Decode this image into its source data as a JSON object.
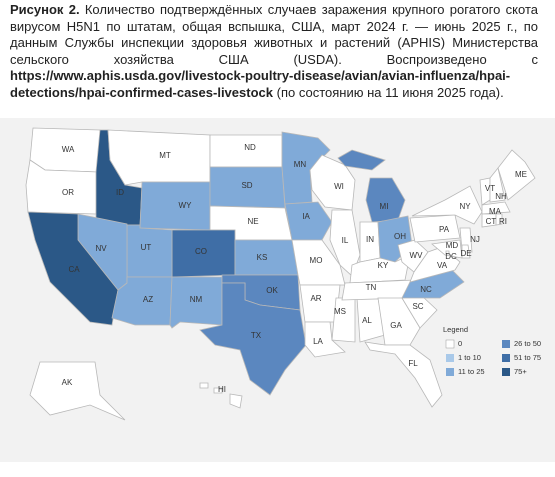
{
  "caption": {
    "label": "Рисунок 2.",
    "text": "Количество подтверждённых случаев заражения крупного рогатого скота вирусом H5N1 по штатам, общая вспышка, США, март 2024 г. — июнь 2025 г., по данным Службы инспекции здоровья животных и растений (APHIS) Министерства сельского хозяйства США (USDA). Воспроизведено с",
    "link": "https://www.aphis.usda.gov/livestock-poultry-disease/avian/avian-influenza/hpai-detections/hpai-confirmed-cases-livestock",
    "suffix": "(по состоянию на 11 июня 2025 года)."
  },
  "legend": {
    "title": "Legend",
    "classes": [
      {
        "label": "0",
        "color": "#ffffff"
      },
      {
        "label": "1 to 10",
        "color": "#a9c9e9"
      },
      {
        "label": "11 to 25",
        "color": "#80aad8"
      },
      {
        "label": "26 to 50",
        "color": "#5b87bf"
      },
      {
        "label": "51 to 75",
        "color": "#3f6ea6"
      },
      {
        "label": "75+",
        "color": "#2b5887"
      }
    ]
  },
  "states": [
    {
      "label": "WA",
      "color": "#ffffff"
    },
    {
      "label": "OR",
      "color": "#ffffff"
    },
    {
      "label": "ID",
      "color": "#2b5887"
    },
    {
      "label": "MT",
      "color": "#ffffff"
    },
    {
      "label": "WY",
      "color": "#80aad8"
    },
    {
      "label": "ND",
      "color": "#ffffff"
    },
    {
      "label": "SD",
      "color": "#80aad8"
    },
    {
      "label": "NE",
      "color": "#ffffff"
    },
    {
      "label": "CO",
      "color": "#3f6ea6"
    },
    {
      "label": "UT",
      "color": "#80aad8"
    },
    {
      "label": "NV",
      "color": "#80aad8"
    },
    {
      "label": "CA",
      "color": "#2b5887"
    },
    {
      "label": "AZ",
      "color": "#80aad8"
    },
    {
      "label": "NM",
      "color": "#80aad8"
    },
    {
      "label": "KS",
      "color": "#80aad8"
    },
    {
      "label": "OK",
      "color": "#5b87bf"
    },
    {
      "label": "TX",
      "color": "#5b87bf"
    },
    {
      "label": "MN",
      "color": "#80aad8"
    },
    {
      "label": "IA",
      "color": "#80aad8"
    },
    {
      "label": "WI",
      "color": "#ffffff"
    },
    {
      "label": "IL",
      "color": "#ffffff"
    },
    {
      "label": "MO",
      "color": "#ffffff"
    },
    {
      "label": "AR",
      "color": "#ffffff"
    },
    {
      "label": "LA",
      "color": "#ffffff"
    },
    {
      "label": "MS",
      "color": "#ffffff"
    },
    {
      "label": "AL",
      "color": "#ffffff"
    },
    {
      "label": "MI",
      "color": "#5b87bf"
    },
    {
      "label": "IN",
      "color": "#ffffff"
    },
    {
      "label": "OH",
      "color": "#80aad8"
    },
    {
      "label": "KY",
      "color": "#ffffff"
    },
    {
      "label": "TN",
      "color": "#ffffff"
    },
    {
      "label": "GA",
      "color": "#ffffff"
    },
    {
      "label": "FL",
      "color": "#ffffff"
    },
    {
      "label": "SC",
      "color": "#ffffff"
    },
    {
      "label": "NC",
      "color": "#80aad8"
    },
    {
      "label": "WV",
      "color": "#ffffff"
    },
    {
      "label": "VA",
      "color": "#ffffff"
    },
    {
      "label": "PA",
      "color": "#ffffff"
    },
    {
      "label": "NY",
      "color": "#ffffff"
    },
    {
      "label": "VT",
      "color": "#ffffff"
    },
    {
      "label": "NH",
      "color": "#ffffff"
    },
    {
      "label": "ME",
      "color": "#ffffff"
    },
    {
      "label": "MA",
      "color": "#ffffff"
    },
    {
      "label": "CT",
      "color": "#ffffff"
    },
    {
      "label": "RI",
      "color": "#ffffff"
    },
    {
      "label": "NJ",
      "color": "#ffffff"
    },
    {
      "label": "DE",
      "color": "#ffffff"
    },
    {
      "label": "MD",
      "color": "#ffffff"
    },
    {
      "label": "DC",
      "color": "#ffffff"
    },
    {
      "label": "AK",
      "color": "#ffffff"
    },
    {
      "label": "HI",
      "color": "#ffffff"
    }
  ]
}
